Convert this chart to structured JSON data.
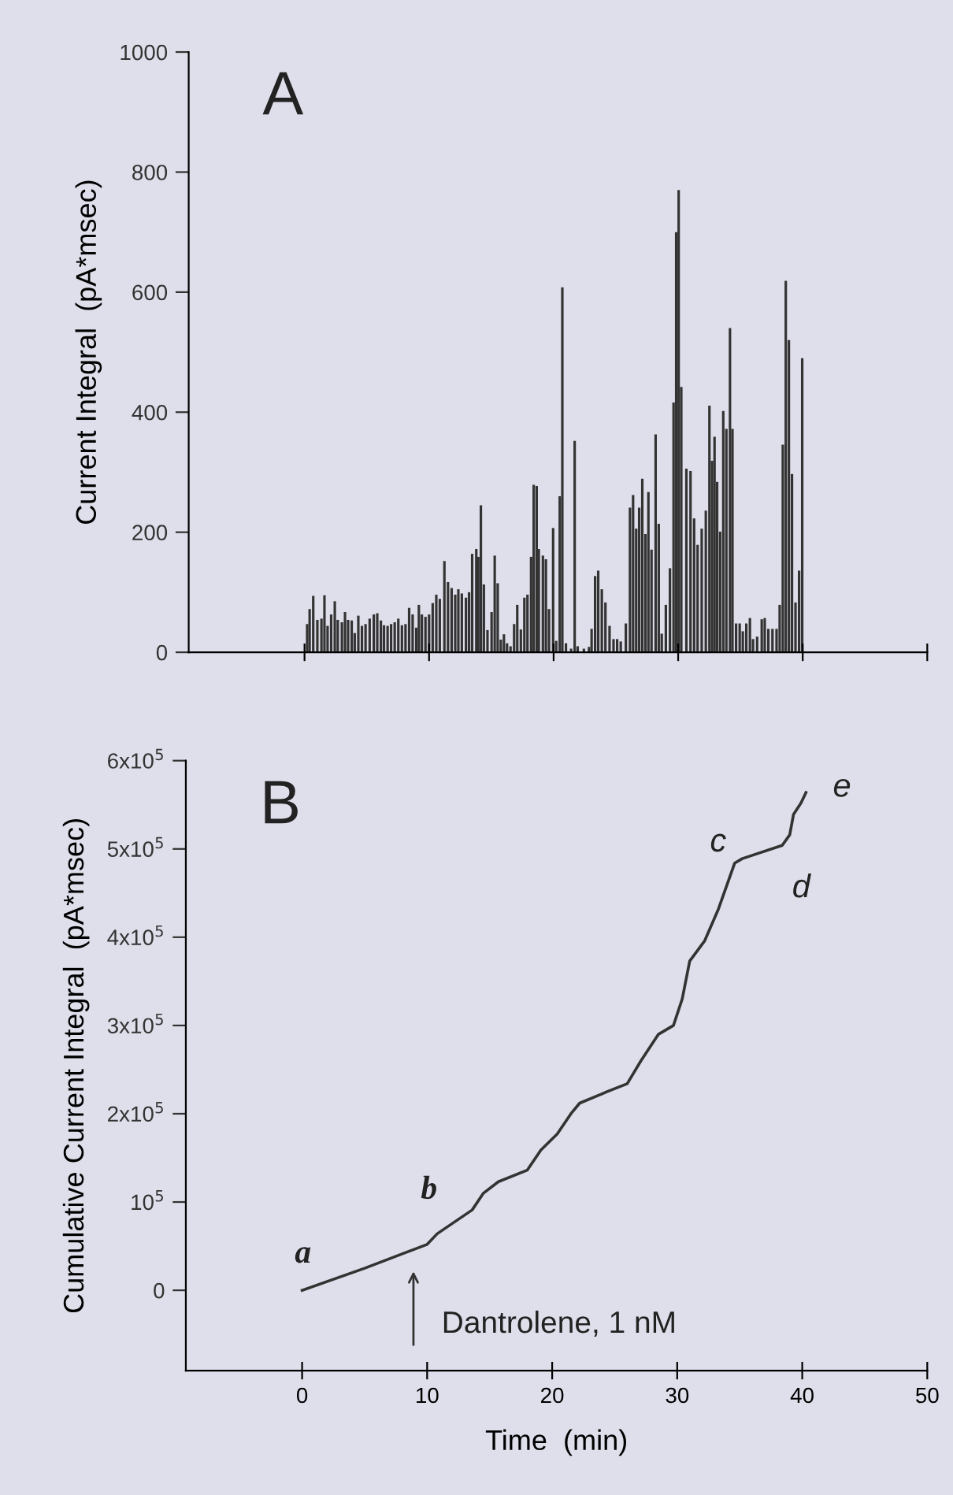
{
  "chart_data": [
    {
      "type": "bar",
      "title": "A",
      "ylabel": "Current Integral  (pA*msec)",
      "color": "#333333",
      "tick_labels": "y",
      "x": [
        0.21,
        0.41,
        0.7,
        1.03,
        1.36,
        1.6,
        1.85,
        2.14,
        2.43,
        2.67,
        3.0,
        3.25,
        3.5,
        3.79,
        4.03,
        4.32,
        4.61,
        4.9,
        5.23,
        5.56,
        5.84,
        6.13,
        6.38,
        6.67,
        6.95,
        7.24,
        7.53,
        7.82,
        8.11,
        8.4,
        8.68,
        8.97,
        9.18,
        9.42,
        9.71,
        10.0,
        10.29,
        10.58,
        10.86,
        11.23,
        11.52,
        11.81,
        12.1,
        12.35,
        12.63,
        12.96,
        13.21,
        13.46,
        13.79,
        13.95,
        14.16,
        14.4,
        14.69,
        15.02,
        15.27,
        15.51,
        15.76,
        16.01,
        16.26,
        16.54,
        16.83,
        17.08,
        17.37,
        17.65,
        17.9,
        18.19,
        18.4,
        18.64,
        18.81,
        19.14,
        19.38,
        19.63,
        19.96,
        20.21,
        20.49,
        20.7,
        20.99,
        21.4,
        21.69,
        21.93,
        22.43,
        22.84,
        23.05,
        23.33,
        23.58,
        23.87,
        24.16,
        24.49,
        24.81,
        25.1,
        25.39,
        25.8,
        26.13,
        26.38,
        26.63,
        26.87,
        27.12,
        27.37,
        27.61,
        27.86,
        28.19,
        28.44,
        28.68,
        29.01,
        29.34,
        29.63,
        29.84,
        30.04,
        30.25,
        30.66,
        30.99,
        31.28,
        31.56,
        31.89,
        32.22,
        32.51,
        32.72,
        32.92,
        33.13,
        33.37,
        33.62,
        33.87,
        34.16,
        34.36,
        34.65,
        34.94,
        35.19,
        35.47,
        35.76,
        36.01,
        36.34,
        36.71,
        36.95,
        37.24,
        37.57,
        37.9,
        38.15,
        38.4,
        38.64,
        38.89,
        39.14,
        39.42,
        39.71,
        39.96
      ],
      "values": [
        47,
        72,
        94,
        54,
        56,
        95,
        44,
        63,
        85,
        54,
        50,
        67,
        54,
        53,
        32,
        61,
        44,
        47,
        56,
        63,
        65,
        53,
        45,
        44,
        47,
        50,
        56,
        45,
        47,
        74,
        63,
        41,
        79,
        63,
        59,
        63,
        82,
        96,
        89,
        152,
        117,
        107,
        96,
        105,
        98,
        91,
        100,
        164,
        172,
        159,
        245,
        113,
        37,
        67,
        161,
        115,
        21,
        30,
        15,
        10,
        47,
        79,
        38,
        91,
        96,
        159,
        279,
        277,
        172,
        161,
        155,
        72,
        207,
        19,
        260,
        608,
        15,
        6,
        352,
        10,
        6,
        9,
        39,
        127,
        136,
        105,
        83,
        44,
        22,
        22,
        18,
        48,
        241,
        262,
        206,
        241,
        289,
        197,
        267,
        171,
        363,
        214,
        31,
        79,
        140,
        416,
        700,
        770,
        442,
        306,
        302,
        223,
        179,
        206,
        236,
        411,
        319,
        359,
        284,
        201,
        402,
        372,
        540,
        372,
        48,
        48,
        35,
        48,
        57,
        22,
        26,
        55,
        57,
        39,
        39,
        39,
        79,
        346,
        619,
        520,
        297,
        83,
        136,
        490
      ],
      "xlim": [
        -9.3,
        50
      ],
      "ylim": [
        0,
        1000
      ],
      "yticks": [
        0,
        200,
        400,
        600,
        800,
        1000
      ],
      "xticks": [
        {
          "value": 0,
          "label": null
        },
        {
          "value": 10,
          "label": null
        },
        {
          "value": 20,
          "label": null
        },
        {
          "value": 30,
          "label": null
        },
        {
          "value": 40,
          "label": null
        },
        {
          "value": 50,
          "label": null
        }
      ]
    },
    {
      "type": "line",
      "title": "B",
      "xlabel": "Time  (min)",
      "ylabel": "Cumulative Current Integral  (pA*msec)",
      "color": "#333333",
      "x": [
        0,
        5,
        10,
        10.8,
        13.6,
        14.5,
        15.7,
        18.0,
        19.1,
        20.4,
        21.5,
        22.2,
        24.4,
        26.0,
        27.1,
        28.5,
        29.7,
        30.4,
        31.0,
        32.2,
        33.3,
        34.6,
        35.2,
        38.4,
        39.0,
        39.3,
        39.9,
        40.3
      ],
      "values": [
        0,
        25000,
        52000,
        64000,
        91000,
        110000,
        123000,
        136000,
        159000,
        177000,
        200000,
        212000,
        225000,
        234000,
        260000,
        290000,
        300000,
        330000,
        373000,
        396000,
        432000,
        484000,
        489000,
        504000,
        516000,
        539000,
        552000,
        564000
      ],
      "xlim": [
        -9.3,
        50
      ],
      "ylim": [
        -91000,
        600000
      ],
      "xticks": [
        0,
        10,
        20,
        30,
        40,
        50
      ],
      "yticks": [
        0,
        {
          "value": 100000,
          "label": "10$^{5}$"
        },
        {
          "value": 200000,
          "label": "2x10$^{5}$"
        },
        {
          "value": 300000,
          "label": "3x10$^{5}$"
        },
        {
          "value": 400000,
          "label": "4x10$^{5}$"
        },
        {
          "value": 500000,
          "label": "5x10$^{5}$"
        },
        {
          "value": 600000,
          "label": "6x10$^{5}$"
        }
      ],
      "annotations": [
        "a",
        "b",
        "c",
        "d",
        "e",
        "Dantrolene, 1 nM"
      ]
    }
  ]
}
